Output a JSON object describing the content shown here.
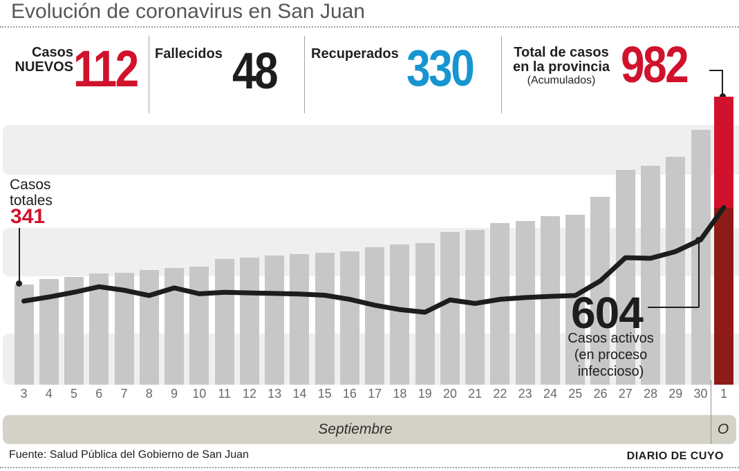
{
  "title": "Evolución de coronavirus en San Juan",
  "stats": {
    "items": [
      {
        "label_lines": "Casos\nNUEVOS",
        "value": "112",
        "color": "#d0122c"
      },
      {
        "label_lines": "Fallecidos",
        "value": "48",
        "color": "#1d1d1b"
      },
      {
        "label_lines": "Recuperados",
        "value": "330",
        "color": "#1795d1"
      },
      {
        "label_lines": "Total de casos\nen la provincia",
        "sublabel": "(Acumulados)",
        "value": "982",
        "color": "#d0122c"
      }
    ]
  },
  "colors": {
    "red": "#d0122c",
    "dark_red": "#8e1b18",
    "blue": "#1795d1",
    "bar_gray": "#c7c7c7",
    "band_gray": "#efefef",
    "beige": "#d4d1c6",
    "black": "#1d1d1b",
    "axis_gray": "#68696b"
  },
  "chart_data": {
    "type": "bar+line",
    "title": "Evolución de coronavirus en San Juan",
    "categories": [
      "3",
      "4",
      "5",
      "6",
      "7",
      "8",
      "9",
      "10",
      "11",
      "12",
      "13",
      "14",
      "15",
      "16",
      "17",
      "18",
      "19",
      "20",
      "21",
      "22",
      "23",
      "24",
      "25",
      "26",
      "27",
      "28",
      "29",
      "30",
      "1"
    ],
    "x_groups": [
      {
        "label": "Septiembre"
      },
      {
        "label": "O"
      }
    ],
    "ylim": [
      0,
      982
    ],
    "grid": "horizontal-bands",
    "legend": "none",
    "series": [
      {
        "name": "Casos totales (acumulados)",
        "type": "bar",
        "values": [
          341,
          360,
          368,
          379,
          382,
          391,
          397,
          403,
          428,
          433,
          440,
          446,
          450,
          455,
          469,
          477,
          483,
          520,
          528,
          552,
          558,
          574,
          580,
          641,
          733,
          746,
          776,
          870,
          982
        ],
        "highlight_last_color": "#d0122c"
      },
      {
        "name": "Casos activos (en proceso infeccioso)",
        "type": "line",
        "values": [
          285,
          299,
          315,
          334,
          322,
          304,
          330,
          310,
          315,
          313,
          311,
          309,
          305,
          291,
          271,
          256,
          247,
          289,
          277,
          291,
          297,
          301,
          304,
          354,
          433,
          431,
          454,
          494,
          604
        ]
      }
    ]
  },
  "annotations": {
    "casos_totales": {
      "label": "Casos\ntotales",
      "value": "341"
    },
    "casos_activos": {
      "value": "604",
      "label": "Casos activos\n(en proceso\ninfeccioso)"
    }
  },
  "footer": {
    "source": "Fuente: Salud Pública del Gobierno de San Juan",
    "credit": "DIARIO DE CUYO"
  }
}
